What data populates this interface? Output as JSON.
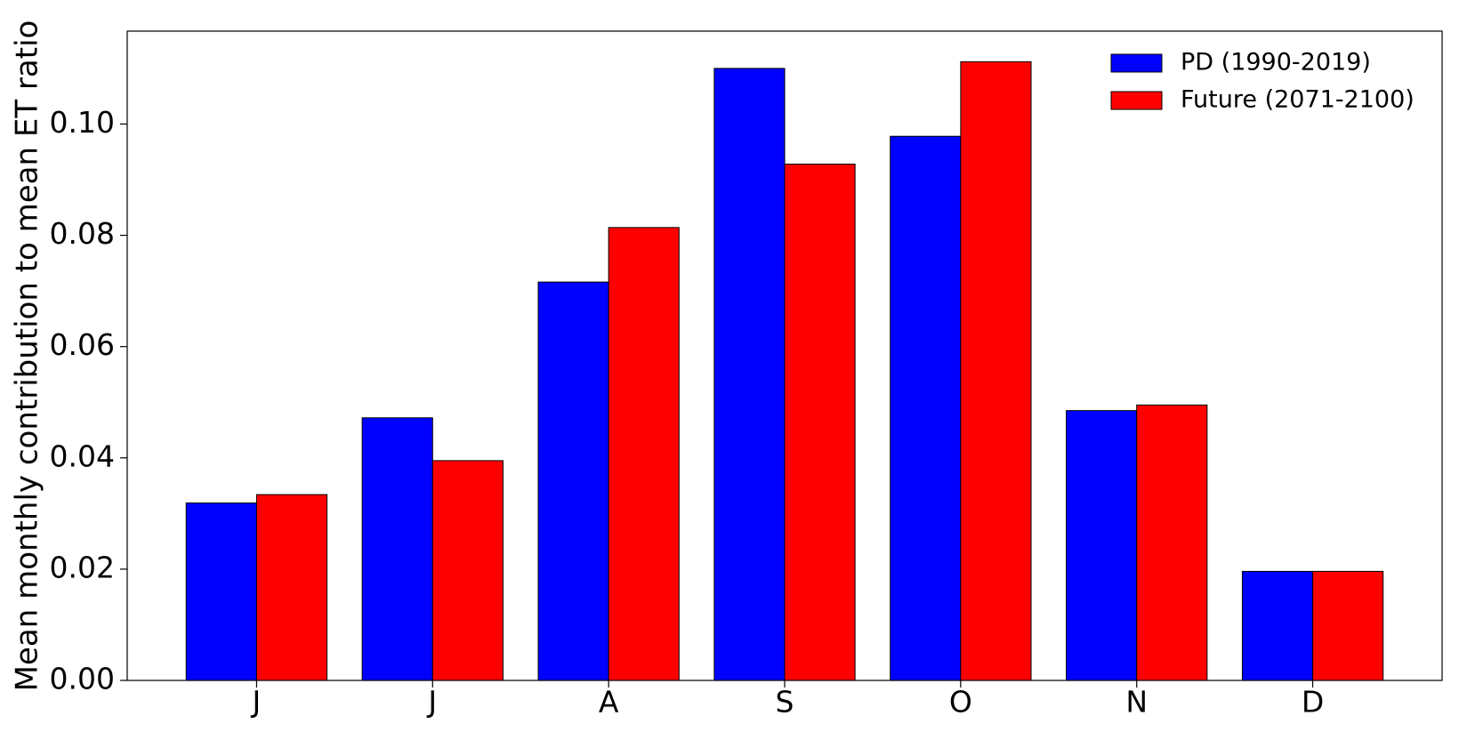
{
  "chart_data": {
    "type": "bar",
    "ylabel": "Mean monthly contribution to mean ET ratio",
    "categories": [
      "J",
      "J",
      "A",
      "S",
      "O",
      "N",
      "D"
    ],
    "series": [
      {
        "name": "PD (1990-2019)",
        "color": "#0000ff",
        "values": [
          0.0319,
          0.0472,
          0.0716,
          0.11,
          0.0978,
          0.0485,
          0.0196
        ]
      },
      {
        "name": "Future (2071-2100)",
        "color": "#ff0000",
        "values": [
          0.0334,
          0.0395,
          0.0814,
          0.0928,
          0.1112,
          0.0495,
          0.0196
        ]
      }
    ],
    "ylim": [
      0,
      0.1167
    ],
    "yticks": [
      {
        "value": 0,
        "label": "0.00"
      },
      {
        "value": 0.02,
        "label": "0.02"
      },
      {
        "value": 0.04,
        "label": "0.04"
      },
      {
        "value": 0.06,
        "label": "0.06"
      },
      {
        "value": 0.08,
        "label": "0.08"
      },
      {
        "value": 0.1,
        "label": "0.10"
      }
    ],
    "legend": "upper right"
  }
}
